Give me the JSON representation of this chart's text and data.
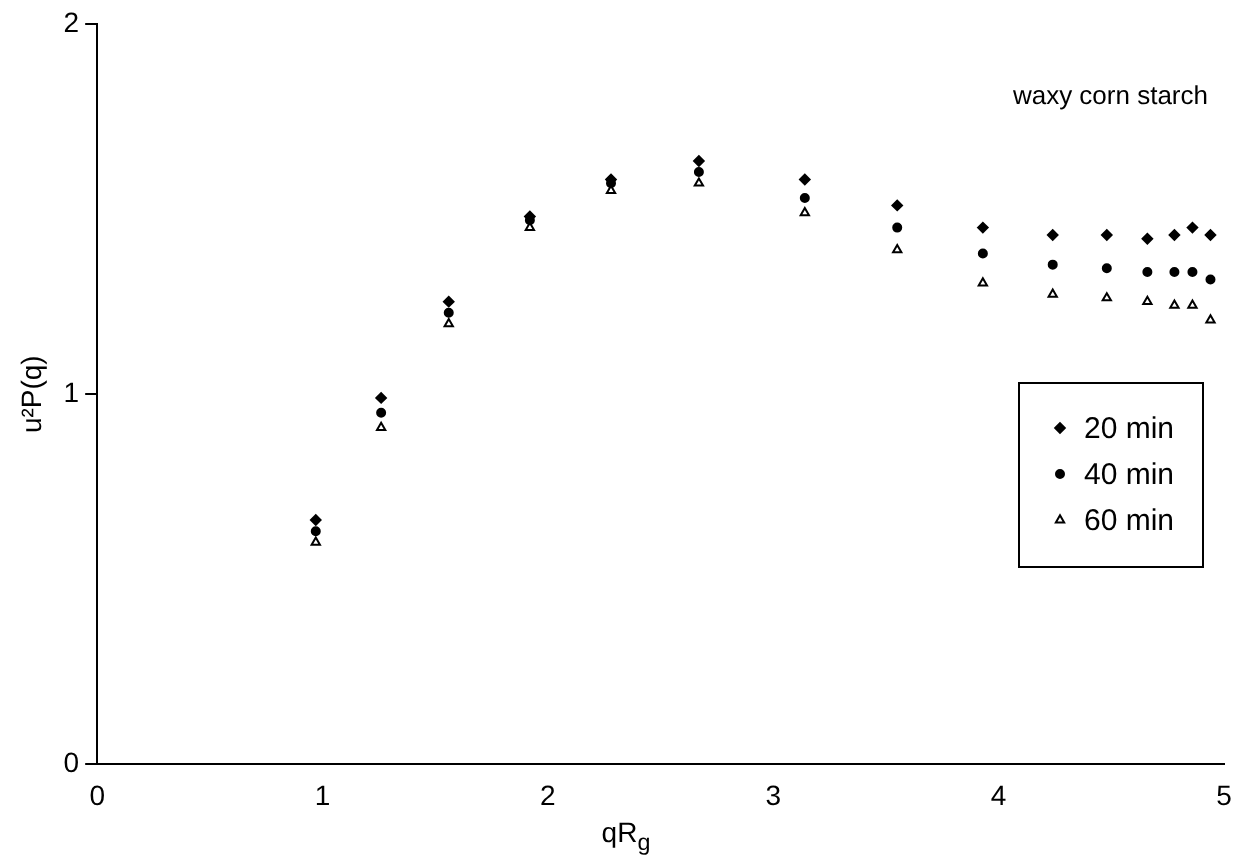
{
  "chart_data": {
    "type": "scatter",
    "xlabel": "qR$_{g}$",
    "ylabel": "u²P(q)",
    "annotations": [
      "waxy corn starch"
    ],
    "x": [
      0.97,
      1.26,
      1.56,
      1.92,
      2.28,
      2.67,
      3.14,
      3.55,
      3.93,
      4.24,
      4.48,
      4.66,
      4.78,
      4.86,
      4.94
    ],
    "series": [
      {
        "name": "20 min",
        "color": "#000000",
        "marker": "diamond",
        "values": [
          0.66,
          0.99,
          1.25,
          1.48,
          1.58,
          1.63,
          1.58,
          1.51,
          1.45,
          1.43,
          1.43,
          1.42,
          1.43,
          1.45,
          1.43
        ]
      },
      {
        "name": "40 min",
        "color": "#000000",
        "marker": "circle",
        "values": [
          0.63,
          0.95,
          1.22,
          1.47,
          1.57,
          1.6,
          1.53,
          1.45,
          1.38,
          1.35,
          1.34,
          1.33,
          1.33,
          1.33,
          1.31
        ]
      },
      {
        "name": "60 min",
        "color": "#000000",
        "marker": "triangle",
        "values": [
          0.6,
          0.91,
          1.19,
          1.45,
          1.55,
          1.57,
          1.49,
          1.39,
          1.3,
          1.27,
          1.26,
          1.25,
          1.24,
          1.24,
          1.2
        ]
      }
    ],
    "xlim": [
      0,
      5
    ],
    "xticks": [
      0,
      1,
      2,
      3,
      4,
      5
    ],
    "ylim": [
      0,
      2
    ],
    "yticks": [
      0,
      1,
      2
    ],
    "grid": false,
    "legend": "right"
  }
}
